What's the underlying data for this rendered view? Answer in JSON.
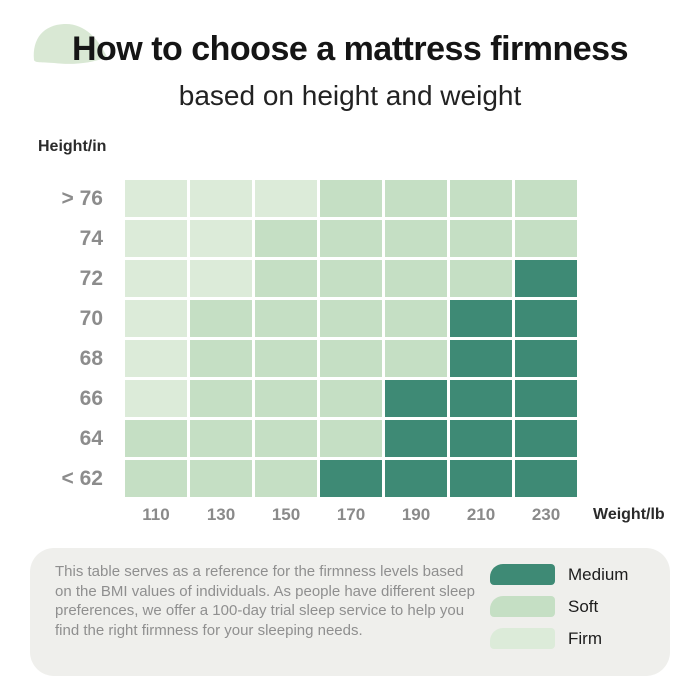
{
  "header": {
    "title": "How to choose a mattress firmness",
    "subtitle": "based on height and weight"
  },
  "chart_data": {
    "type": "heatmap",
    "title": "How to choose a mattress firmness",
    "subtitle": "based on height and weight",
    "x_axis_label": "Weight/lb",
    "y_axis_label": "Height/in",
    "x_ticks": [
      "110",
      "130",
      "150",
      "170",
      "190",
      "210",
      "230"
    ],
    "y_ticks": [
      "> 76",
      "74",
      "72",
      "70",
      "68",
      "66",
      "64",
      "< 62"
    ],
    "cells": [
      [
        "firm",
        "firm",
        "firm",
        "soft",
        "soft",
        "soft",
        "soft"
      ],
      [
        "firm",
        "firm",
        "soft",
        "soft",
        "soft",
        "soft",
        "soft"
      ],
      [
        "firm",
        "firm",
        "soft",
        "soft",
        "soft",
        "soft",
        "medium"
      ],
      [
        "firm",
        "soft",
        "soft",
        "soft",
        "soft",
        "medium",
        "medium"
      ],
      [
        "firm",
        "soft",
        "soft",
        "soft",
        "soft",
        "medium",
        "medium"
      ],
      [
        "firm",
        "soft",
        "soft",
        "soft",
        "medium",
        "medium",
        "medium"
      ],
      [
        "soft",
        "soft",
        "soft",
        "soft",
        "medium",
        "medium",
        "medium"
      ],
      [
        "soft",
        "soft",
        "soft",
        "medium",
        "medium",
        "medium",
        "medium"
      ]
    ],
    "colors": {
      "medium": "#3e8a75",
      "soft": "#c5dfc4",
      "firm": "#dcebd9"
    },
    "legend_position": "bottom-right",
    "legend": [
      {
        "label": "Medium",
        "key": "medium"
      },
      {
        "label": "Soft",
        "key": "soft"
      },
      {
        "label": "Firm",
        "key": "firm"
      }
    ],
    "grid": false
  },
  "footer": {
    "note": "This table serves as a reference for the firmness levels based on the BMI values of individuals. As people have different sleep preferences, we offer a 100-day trial sleep service to help you find the right firmness for your sleeping needs."
  },
  "decor": {
    "leaf_color": "#d9e8d4",
    "footer_bg": "#efefec"
  }
}
